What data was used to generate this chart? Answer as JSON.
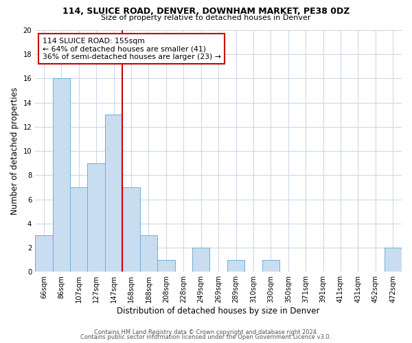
{
  "title": "114, SLUICE ROAD, DENVER, DOWNHAM MARKET, PE38 0DZ",
  "subtitle": "Size of property relative to detached houses in Denver",
  "xlabel": "Distribution of detached houses by size in Denver",
  "ylabel": "Number of detached properties",
  "categories": [
    "66sqm",
    "86sqm",
    "107sqm",
    "127sqm",
    "147sqm",
    "168sqm",
    "188sqm",
    "208sqm",
    "228sqm",
    "249sqm",
    "269sqm",
    "289sqm",
    "310sqm",
    "330sqm",
    "350sqm",
    "371sqm",
    "391sqm",
    "411sqm",
    "431sqm",
    "452sqm",
    "472sqm"
  ],
  "values": [
    3,
    16,
    7,
    9,
    13,
    7,
    3,
    1,
    0,
    2,
    0,
    1,
    0,
    1,
    0,
    0,
    0,
    0,
    0,
    0,
    2
  ],
  "bar_color": "#c9ddf0",
  "bar_edge_color": "#6baed6",
  "ref_line_color": "#cc0000",
  "annotation_box_color": "#cc0000",
  "ylim": [
    0,
    20
  ],
  "yticks": [
    0,
    2,
    4,
    6,
    8,
    10,
    12,
    14,
    16,
    18,
    20
  ],
  "annotation_line1": "114 SLUICE ROAD: 155sqm",
  "annotation_line2": "← 64% of detached houses are smaller (41)",
  "annotation_line3": "36% of semi-detached houses are larger (23) →",
  "footer1": "Contains HM Land Registry data © Crown copyright and database right 2024.",
  "footer2": "Contains public sector information licensed under the Open Government Licence v3.0.",
  "background_color": "#ffffff",
  "grid_color": "#c8d4e8"
}
